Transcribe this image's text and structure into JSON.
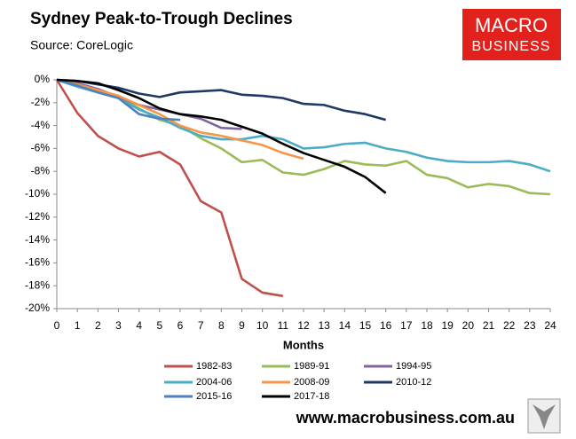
{
  "chart_data": {
    "type": "line",
    "title": "Sydney Peak-to-Trough Declines",
    "subtitle": "Source: CoreLogic",
    "x_label": "Months",
    "x": [
      0,
      1,
      2,
      3,
      4,
      5,
      6,
      7,
      8,
      9,
      10,
      11,
      12,
      13,
      14,
      15,
      16,
      17,
      18,
      19,
      20,
      21,
      22,
      23,
      24
    ],
    "xlim": [
      0,
      24
    ],
    "xticks": [
      0,
      1,
      2,
      3,
      4,
      5,
      6,
      7,
      8,
      9,
      10,
      11,
      12,
      13,
      14,
      15,
      16,
      17,
      18,
      19,
      20,
      21,
      22,
      23,
      24
    ],
    "ylim": [
      -20,
      0
    ],
    "yticks": [
      {
        "value": 0,
        "label": "0%"
      },
      {
        "value": -2,
        "label": "-2%"
      },
      {
        "value": -4,
        "label": "-4%"
      },
      {
        "value": -6,
        "label": "-6%"
      },
      {
        "value": -8,
        "label": "-8%"
      },
      {
        "value": -10,
        "label": "-10%"
      },
      {
        "value": -12,
        "label": "-12%"
      },
      {
        "value": -14,
        "label": "-14%"
      },
      {
        "value": -16,
        "label": "-16%"
      },
      {
        "value": -18,
        "label": "-18%"
      },
      {
        "value": -20,
        "label": "-20%"
      }
    ],
    "grid": false,
    "legend": "bottom",
    "series": [
      {
        "name": "1982-83",
        "color": "#c0504d",
        "values": [
          0,
          -2.9,
          -4.9,
          -6.0,
          -6.7,
          -6.3,
          -7.4,
          -10.6,
          -11.6,
          -17.4,
          -18.6,
          -18.9,
          null,
          null,
          null,
          null,
          null,
          null,
          null,
          null,
          null,
          null,
          null,
          null,
          null
        ]
      },
      {
        "name": "1989-91",
        "color": "#9bbb59",
        "values": [
          0,
          -0.5,
          -1.0,
          -1.5,
          -2.5,
          -3.5,
          -4.0,
          -5.1,
          -6.0,
          -7.2,
          -7.0,
          -8.1,
          -8.3,
          -7.8,
          -7.1,
          -7.4,
          -7.5,
          -7.1,
          -8.3,
          -8.6,
          -9.4,
          -9.1,
          -9.3,
          -9.9,
          -10.0
        ]
      },
      {
        "name": "1994-95",
        "color": "#8064a2",
        "values": [
          0,
          -0.3,
          -0.8,
          -1.5,
          -2.2,
          -2.6,
          -3.0,
          -3.4,
          -4.2,
          -4.3,
          null,
          null,
          null,
          null,
          null,
          null,
          null,
          null,
          null,
          null,
          null,
          null,
          null,
          null,
          null
        ]
      },
      {
        "name": "2004-06",
        "color": "#4bacc6",
        "values": [
          0,
          -0.6,
          -1.1,
          -1.6,
          -2.6,
          -3.3,
          -4.2,
          -4.9,
          -5.2,
          -5.2,
          -4.9,
          -5.2,
          -6.0,
          -5.9,
          -5.6,
          -5.5,
          -6.0,
          -6.3,
          -6.8,
          -7.1,
          -7.2,
          -7.2,
          -7.1,
          -7.4,
          -8.0
        ]
      },
      {
        "name": "2008-09",
        "color": "#f79646",
        "values": [
          0,
          -0.4,
          -0.9,
          -1.4,
          -2.2,
          -3.0,
          -4.0,
          -4.6,
          -4.9,
          -5.3,
          -5.7,
          -6.4,
          -6.9,
          null,
          null,
          null,
          null,
          null,
          null,
          null,
          null,
          null,
          null,
          null,
          null
        ]
      },
      {
        "name": "2010-12",
        "color": "#1f3864",
        "values": [
          0,
          -0.1,
          -0.4,
          -0.7,
          -1.2,
          -1.5,
          -1.1,
          -1.0,
          -0.9,
          -1.3,
          -1.4,
          -1.6,
          -2.1,
          -2.2,
          -2.7,
          -3.0,
          -3.5,
          null,
          null,
          null,
          null,
          null,
          null,
          null,
          null
        ]
      },
      {
        "name": "2015-16",
        "color": "#4f81bd",
        "values": [
          0,
          -0.5,
          -1.1,
          -1.6,
          -3.0,
          -3.4,
          -3.5,
          null,
          null,
          null,
          null,
          null,
          null,
          null,
          null,
          null,
          null,
          null,
          null,
          null,
          null,
          null,
          null,
          null,
          null
        ]
      },
      {
        "name": "2017-18",
        "color": "#000000",
        "values": [
          0,
          -0.1,
          -0.3,
          -0.9,
          -1.6,
          -2.5,
          -3.0,
          -3.2,
          -3.5,
          -4.1,
          -4.7,
          -5.6,
          -6.4,
          -7.0,
          -7.6,
          -8.5,
          -9.9,
          null,
          null,
          null,
          null,
          null,
          null,
          null,
          null
        ]
      }
    ]
  },
  "logo": [
    "MACRO",
    "BUSINESS"
  ],
  "footer": "www.macrobusiness.com.au"
}
